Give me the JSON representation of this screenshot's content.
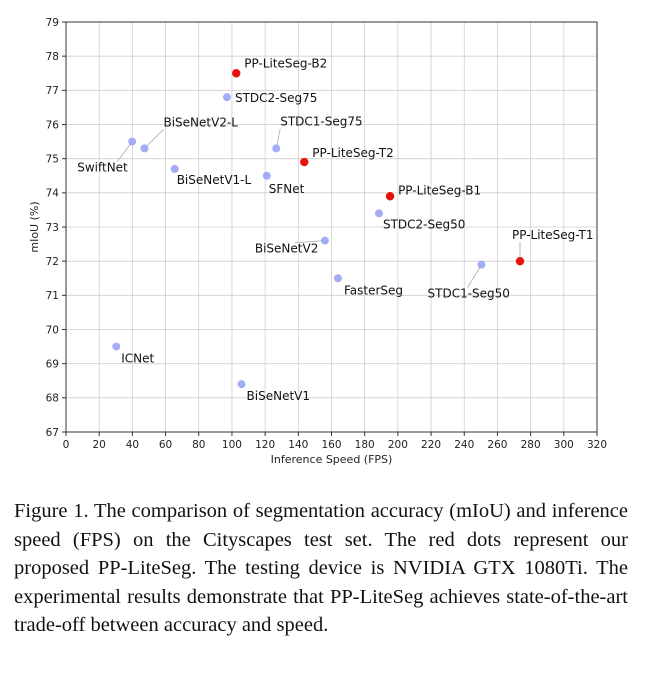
{
  "chart_data": {
    "type": "scatter",
    "xlabel": "Inference Speed (FPS)",
    "ylabel": "mIoU (%)",
    "xlim": [
      0,
      320
    ],
    "ylim": [
      67,
      79
    ],
    "xticks": [
      0,
      20,
      40,
      60,
      80,
      100,
      120,
      140,
      160,
      180,
      200,
      220,
      240,
      260,
      280,
      300,
      320
    ],
    "yticks": [
      67,
      68,
      69,
      70,
      71,
      72,
      73,
      74,
      75,
      76,
      77,
      78,
      79
    ],
    "grid": true,
    "colors": {
      "proposed": "#e8120c",
      "other": "#9aa4f2"
    },
    "points": [
      {
        "label": "PP-LiteSeg-B2",
        "x": 102.6,
        "y": 77.5,
        "proposed": true
      },
      {
        "label": "STDC2-Seg75",
        "x": 97.0,
        "y": 76.8,
        "proposed": false
      },
      {
        "label": "BiSeNetV2-L",
        "x": 47.3,
        "y": 75.3,
        "proposed": false
      },
      {
        "label": "SwiftNet",
        "x": 39.9,
        "y": 75.5,
        "proposed": false
      },
      {
        "label": "STDC1-Seg75",
        "x": 126.7,
        "y": 75.3,
        "proposed": false
      },
      {
        "label": "PP-LiteSeg-T2",
        "x": 143.6,
        "y": 74.9,
        "proposed": true
      },
      {
        "label": "BiSeNetV1-L",
        "x": 65.5,
        "y": 74.7,
        "proposed": false
      },
      {
        "label": "SFNet",
        "x": 121.0,
        "y": 74.5,
        "proposed": false
      },
      {
        "label": "PP-LiteSeg-B1",
        "x": 195.3,
        "y": 73.9,
        "proposed": true
      },
      {
        "label": "STDC2-Seg50",
        "x": 188.6,
        "y": 73.4,
        "proposed": false
      },
      {
        "label": "PP-LiteSeg-T1",
        "x": 273.6,
        "y": 72.0,
        "proposed": true
      },
      {
        "label": "BiSeNetV2",
        "x": 156.0,
        "y": 72.6,
        "proposed": false
      },
      {
        "label": "STDC1-Seg50",
        "x": 250.4,
        "y": 71.9,
        "proposed": false
      },
      {
        "label": "FasterSeg",
        "x": 163.9,
        "y": 71.5,
        "proposed": false
      },
      {
        "label": "ICNet",
        "x": 30.3,
        "y": 69.5,
        "proposed": false
      },
      {
        "label": "BiSeNetV1",
        "x": 105.8,
        "y": 68.4,
        "proposed": false
      }
    ]
  },
  "caption": "Figure 1. The comparison of segmentation accuracy (mIoU) and inference speed (FPS) on the Cityscapes test set. The red dots represent our proposed PP-LiteSeg. The testing device is NVIDIA GTX 1080Ti. The experimental results demonstrate that PP-LiteSeg achieves state-of-the-art trade-off between accuracy and speed."
}
